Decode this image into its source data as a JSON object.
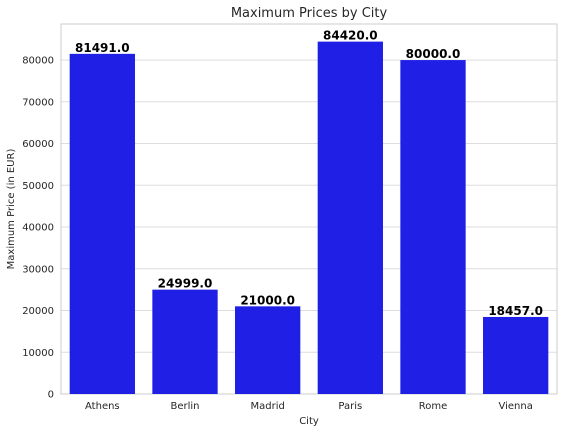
{
  "chart_data": {
    "type": "bar",
    "title": "Maximum Prices by City",
    "xlabel": "City",
    "ylabel": "Maximum Price (in EUR)",
    "categories": [
      "Athens",
      "Berlin",
      "Madrid",
      "Paris",
      "Rome",
      "Vienna"
    ],
    "values": [
      81491.0,
      24999.0,
      21000.0,
      84420.0,
      80000.0,
      18457.0
    ],
    "data_labels": [
      "81491.0",
      "24999.0",
      "21000.0",
      "84420.0",
      "80000.0",
      "18457.0"
    ],
    "ylim": [
      0,
      88641
    ],
    "yticks": [
      0,
      10000,
      20000,
      30000,
      40000,
      50000,
      60000,
      70000,
      80000
    ],
    "grid": "y",
    "bar_color": "#1f1fe6",
    "legend": "none"
  }
}
